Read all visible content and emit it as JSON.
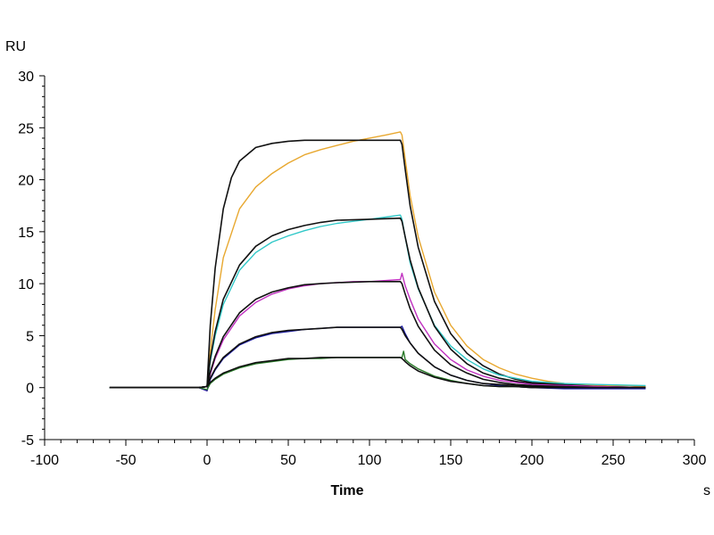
{
  "chart_data": {
    "type": "line",
    "title": "",
    "xlabel": "Time",
    "x_unit": "s",
    "ylabel": "RU",
    "xlim": [
      -100,
      300
    ],
    "ylim": [
      -5,
      30
    ],
    "x_ticks": [
      -100,
      -50,
      0,
      50,
      100,
      150,
      200,
      250,
      300
    ],
    "y_ticks": [
      -5,
      0,
      5,
      10,
      15,
      20,
      25,
      30
    ],
    "grid": false,
    "legend": "none",
    "series": [
      {
        "color": "#E8A830",
        "x": [
          -60,
          -5,
          0,
          2,
          5,
          10,
          20,
          30,
          40,
          50,
          60,
          70,
          80,
          90,
          100,
          110,
          119,
          120,
          122,
          125,
          130,
          140,
          150,
          160,
          170,
          180,
          190,
          200,
          210,
          220,
          230,
          240,
          250,
          260,
          270
        ],
        "y": [
          0,
          0,
          0.1,
          3.5,
          7.5,
          12.5,
          17.2,
          19.3,
          20.6,
          21.6,
          22.4,
          22.9,
          23.3,
          23.7,
          24.0,
          24.3,
          24.6,
          24.3,
          22.0,
          18.5,
          14.5,
          9.2,
          6.0,
          4.0,
          2.7,
          1.9,
          1.3,
          0.9,
          0.6,
          0.4,
          0.3,
          0.2,
          0.2,
          0.2,
          0.1
        ]
      },
      {
        "color": "#111111",
        "x": [
          -60,
          -5,
          0,
          2,
          5,
          10,
          15,
          20,
          30,
          40,
          50,
          60,
          80,
          100,
          119,
          120,
          122,
          125,
          130,
          140,
          150,
          160,
          170,
          180,
          190,
          200,
          220,
          240,
          270
        ],
        "y": [
          0,
          0,
          0.1,
          6.0,
          11.5,
          17.2,
          20.2,
          21.8,
          23.1,
          23.5,
          23.7,
          23.8,
          23.8,
          23.8,
          23.8,
          23.4,
          21.0,
          17.5,
          13.5,
          8.3,
          5.2,
          3.3,
          2.1,
          1.3,
          0.8,
          0.5,
          0.3,
          0.1,
          0
        ]
      },
      {
        "color": "#30C8C8",
        "x": [
          -60,
          -5,
          0,
          2,
          5,
          10,
          20,
          30,
          40,
          50,
          60,
          70,
          80,
          90,
          100,
          110,
          119,
          120,
          122,
          125,
          130,
          140,
          150,
          160,
          170,
          180,
          190,
          200,
          220,
          240,
          270
        ],
        "y": [
          0,
          0,
          0.1,
          2.5,
          5.0,
          8.0,
          11.3,
          13.0,
          14.0,
          14.6,
          15.1,
          15.5,
          15.8,
          16.0,
          16.2,
          16.4,
          16.6,
          16.2,
          14.5,
          12.0,
          9.5,
          6.0,
          4.0,
          2.7,
          1.8,
          1.2,
          0.9,
          0.6,
          0.4,
          0.3,
          0.2
        ]
      },
      {
        "color": "#111111",
        "x": [
          -60,
          -5,
          0,
          2,
          5,
          10,
          20,
          30,
          40,
          50,
          60,
          70,
          80,
          100,
          119,
          120,
          122,
          125,
          130,
          140,
          150,
          160,
          170,
          180,
          190,
          200,
          220,
          240,
          270
        ],
        "y": [
          0,
          0,
          0.1,
          2.8,
          5.4,
          8.5,
          11.8,
          13.6,
          14.6,
          15.2,
          15.6,
          15.9,
          16.1,
          16.2,
          16.3,
          16.0,
          14.5,
          12.3,
          9.6,
          5.9,
          3.7,
          2.3,
          1.4,
          0.9,
          0.6,
          0.4,
          0.2,
          0.1,
          0
        ]
      },
      {
        "color": "#C030C0",
        "x": [
          -60,
          -5,
          0,
          2,
          5,
          10,
          20,
          30,
          40,
          50,
          60,
          70,
          80,
          90,
          100,
          110,
          119,
          120,
          122,
          125,
          130,
          140,
          150,
          160,
          170,
          180,
          190,
          200,
          220,
          240,
          270
        ],
        "y": [
          0,
          0,
          -0.3,
          1.3,
          2.8,
          4.6,
          6.9,
          8.2,
          9.0,
          9.5,
          9.8,
          10.0,
          10.1,
          10.2,
          10.2,
          10.3,
          10.4,
          11.0,
          9.8,
          8.5,
          6.6,
          4.2,
          2.7,
          1.7,
          1.1,
          0.7,
          0.5,
          0.3,
          0.2,
          0.1,
          0
        ]
      },
      {
        "color": "#111111",
        "x": [
          -60,
          -5,
          0,
          2,
          5,
          10,
          20,
          30,
          40,
          50,
          60,
          70,
          80,
          100,
          119,
          120,
          122,
          125,
          130,
          140,
          150,
          160,
          170,
          180,
          190,
          200,
          220,
          240,
          270
        ],
        "y": [
          0,
          0,
          0.1,
          1.5,
          3.0,
          4.9,
          7.2,
          8.5,
          9.2,
          9.6,
          9.9,
          10.0,
          10.1,
          10.2,
          10.2,
          10.0,
          9.0,
          7.6,
          5.9,
          3.6,
          2.2,
          1.4,
          0.8,
          0.5,
          0.3,
          0.2,
          0.1,
          0,
          0
        ]
      },
      {
        "color": "#1A1AA0",
        "x": [
          -60,
          -5,
          0,
          2,
          5,
          10,
          20,
          30,
          40,
          50,
          60,
          70,
          80,
          90,
          100,
          110,
          119,
          120,
          122,
          125,
          130,
          140,
          150,
          160,
          170,
          180,
          190,
          200,
          220,
          240,
          270
        ],
        "y": [
          0,
          0,
          -0.3,
          0.8,
          1.7,
          2.8,
          4.1,
          4.8,
          5.2,
          5.4,
          5.6,
          5.7,
          5.8,
          5.8,
          5.8,
          5.8,
          5.8,
          5.9,
          5.2,
          4.3,
          3.3,
          2.0,
          1.2,
          0.7,
          0.4,
          0.2,
          0.1,
          0,
          -0.1,
          -0.1,
          -0.1
        ]
      },
      {
        "color": "#111111",
        "x": [
          -60,
          -5,
          0,
          2,
          5,
          10,
          20,
          30,
          40,
          50,
          60,
          70,
          80,
          100,
          119,
          120,
          122,
          125,
          130,
          140,
          150,
          160,
          170,
          180,
          190,
          200,
          220,
          240,
          270
        ],
        "y": [
          0,
          0,
          0.1,
          0.9,
          1.8,
          2.9,
          4.2,
          4.9,
          5.3,
          5.5,
          5.6,
          5.7,
          5.8,
          5.8,
          5.8,
          5.6,
          5.0,
          4.3,
          3.3,
          2.0,
          1.2,
          0.7,
          0.4,
          0.3,
          0.2,
          0.1,
          0,
          0,
          0
        ]
      },
      {
        "color": "#2A7A2A",
        "x": [
          -60,
          -5,
          0,
          2,
          5,
          10,
          20,
          30,
          40,
          50,
          60,
          70,
          80,
          90,
          100,
          110,
          119,
          120,
          121,
          122,
          125,
          130,
          140,
          150,
          160,
          170,
          180,
          190,
          200,
          220,
          240,
          270
        ],
        "y": [
          0,
          0,
          -0.2,
          0.4,
          0.8,
          1.3,
          1.9,
          2.3,
          2.5,
          2.7,
          2.8,
          2.8,
          2.9,
          2.9,
          2.9,
          2.9,
          2.9,
          2.9,
          3.5,
          2.7,
          2.3,
          1.8,
          1.1,
          0.7,
          0.4,
          0.2,
          0.1,
          0.1,
          0,
          0,
          0,
          0
        ]
      },
      {
        "color": "#111111",
        "x": [
          -60,
          -5,
          0,
          2,
          5,
          10,
          20,
          30,
          40,
          50,
          60,
          70,
          80,
          100,
          119,
          120,
          122,
          125,
          130,
          140,
          150,
          160,
          170,
          180,
          190,
          200,
          220,
          240,
          270
        ],
        "y": [
          0,
          0,
          0.1,
          0.5,
          0.9,
          1.4,
          2.0,
          2.4,
          2.6,
          2.8,
          2.8,
          2.9,
          2.9,
          2.9,
          2.9,
          2.8,
          2.5,
          2.1,
          1.6,
          1.0,
          0.6,
          0.4,
          0.2,
          0.1,
          0.1,
          0,
          0,
          0,
          0
        ]
      }
    ]
  }
}
